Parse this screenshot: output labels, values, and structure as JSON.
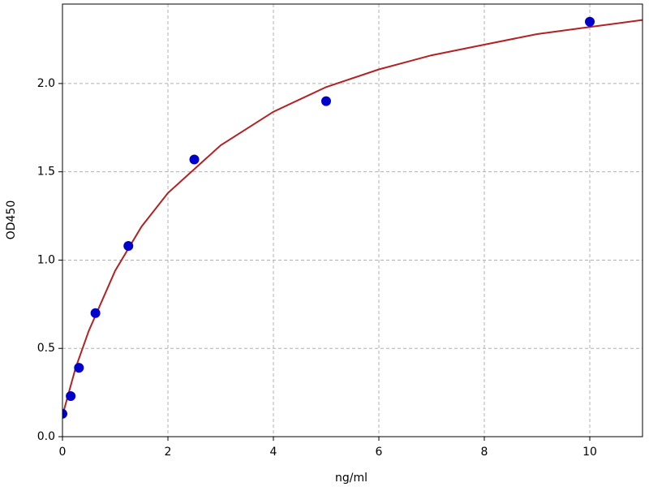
{
  "chart_data": {
    "type": "scatter",
    "x_label": "ng/ml",
    "y_label": "OD450",
    "series": [
      {
        "type": "scatter",
        "color": "#0000cc",
        "x": [
          0,
          0.156,
          0.3125,
          0.625,
          1.25,
          2.5,
          5,
          10
        ],
        "values": [
          0.13,
          0.23,
          0.39,
          0.7,
          1.08,
          1.57,
          1.9,
          2.35
        ]
      },
      {
        "type": "line",
        "color": "#b22222",
        "x": [
          0,
          0.25,
          0.5,
          1,
          1.5,
          2,
          3,
          4,
          5,
          6,
          7,
          8,
          9,
          10,
          11
        ],
        "values": [
          0.12,
          0.39,
          0.6,
          0.94,
          1.19,
          1.38,
          1.65,
          1.84,
          1.98,
          2.08,
          2.16,
          2.22,
          2.28,
          2.32,
          2.36
        ]
      }
    ],
    "xlim": [
      0,
      11
    ],
    "ylim": [
      0,
      2.45
    ],
    "xticks": [
      0,
      2,
      4,
      6,
      8,
      10
    ],
    "yticks": [
      {
        "value": 0,
        "label": "0.0"
      },
      {
        "value": 0.5,
        "label": "0.5"
      },
      {
        "value": 1,
        "label": "1.0"
      },
      {
        "value": 1.5,
        "label": "1.5"
      },
      {
        "value": 2,
        "label": "2.0"
      }
    ],
    "grid": true
  }
}
